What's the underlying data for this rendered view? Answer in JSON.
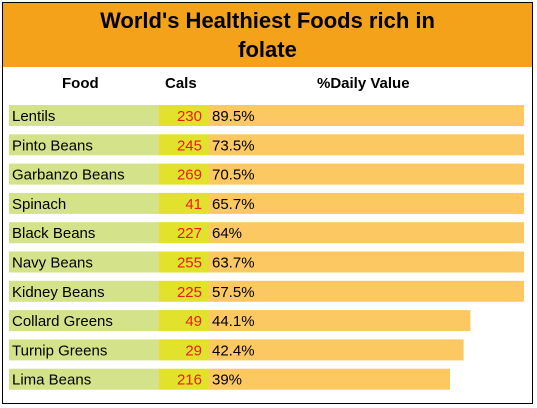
{
  "title": "World's Healthiest Foods rich in folate",
  "columns": {
    "food": "Food",
    "cals": "Cals",
    "daily_value": "%Daily Value"
  },
  "colors": {
    "title_bg": "#f5a21b",
    "food_cell": "#d4e28a",
    "cals_cell": "#e2e22c",
    "cals_text": "#e81c1c",
    "bar": "#fcc862"
  },
  "chart_data": {
    "type": "bar",
    "title": "World's Healthiest Foods rich in folate",
    "xlabel": "",
    "ylabel": "",
    "categories": [
      "Lentils",
      "Pinto Beans",
      "Garbanzo Beans",
      "Spinach",
      "Black Beans",
      "Navy Beans",
      "Kidney Beans",
      "Collard Greens",
      "Turnip Greens",
      "Lima Beans"
    ],
    "cals": [
      230,
      245,
      269,
      41,
      227,
      255,
      225,
      49,
      29,
      216
    ],
    "series": [
      {
        "values": [
          89.5,
          73.5,
          70.5,
          65.7,
          64,
          63.7,
          57.5,
          44.1,
          42.4,
          39
        ]
      }
    ],
    "value_labels": [
      "89.5%",
      "73.5%",
      "70.5%",
      "65.7%",
      "64%",
      "63.7%",
      "57.5%",
      "44.1%",
      "42.4%",
      "39%"
    ],
    "bar_cap": 57.5
  }
}
